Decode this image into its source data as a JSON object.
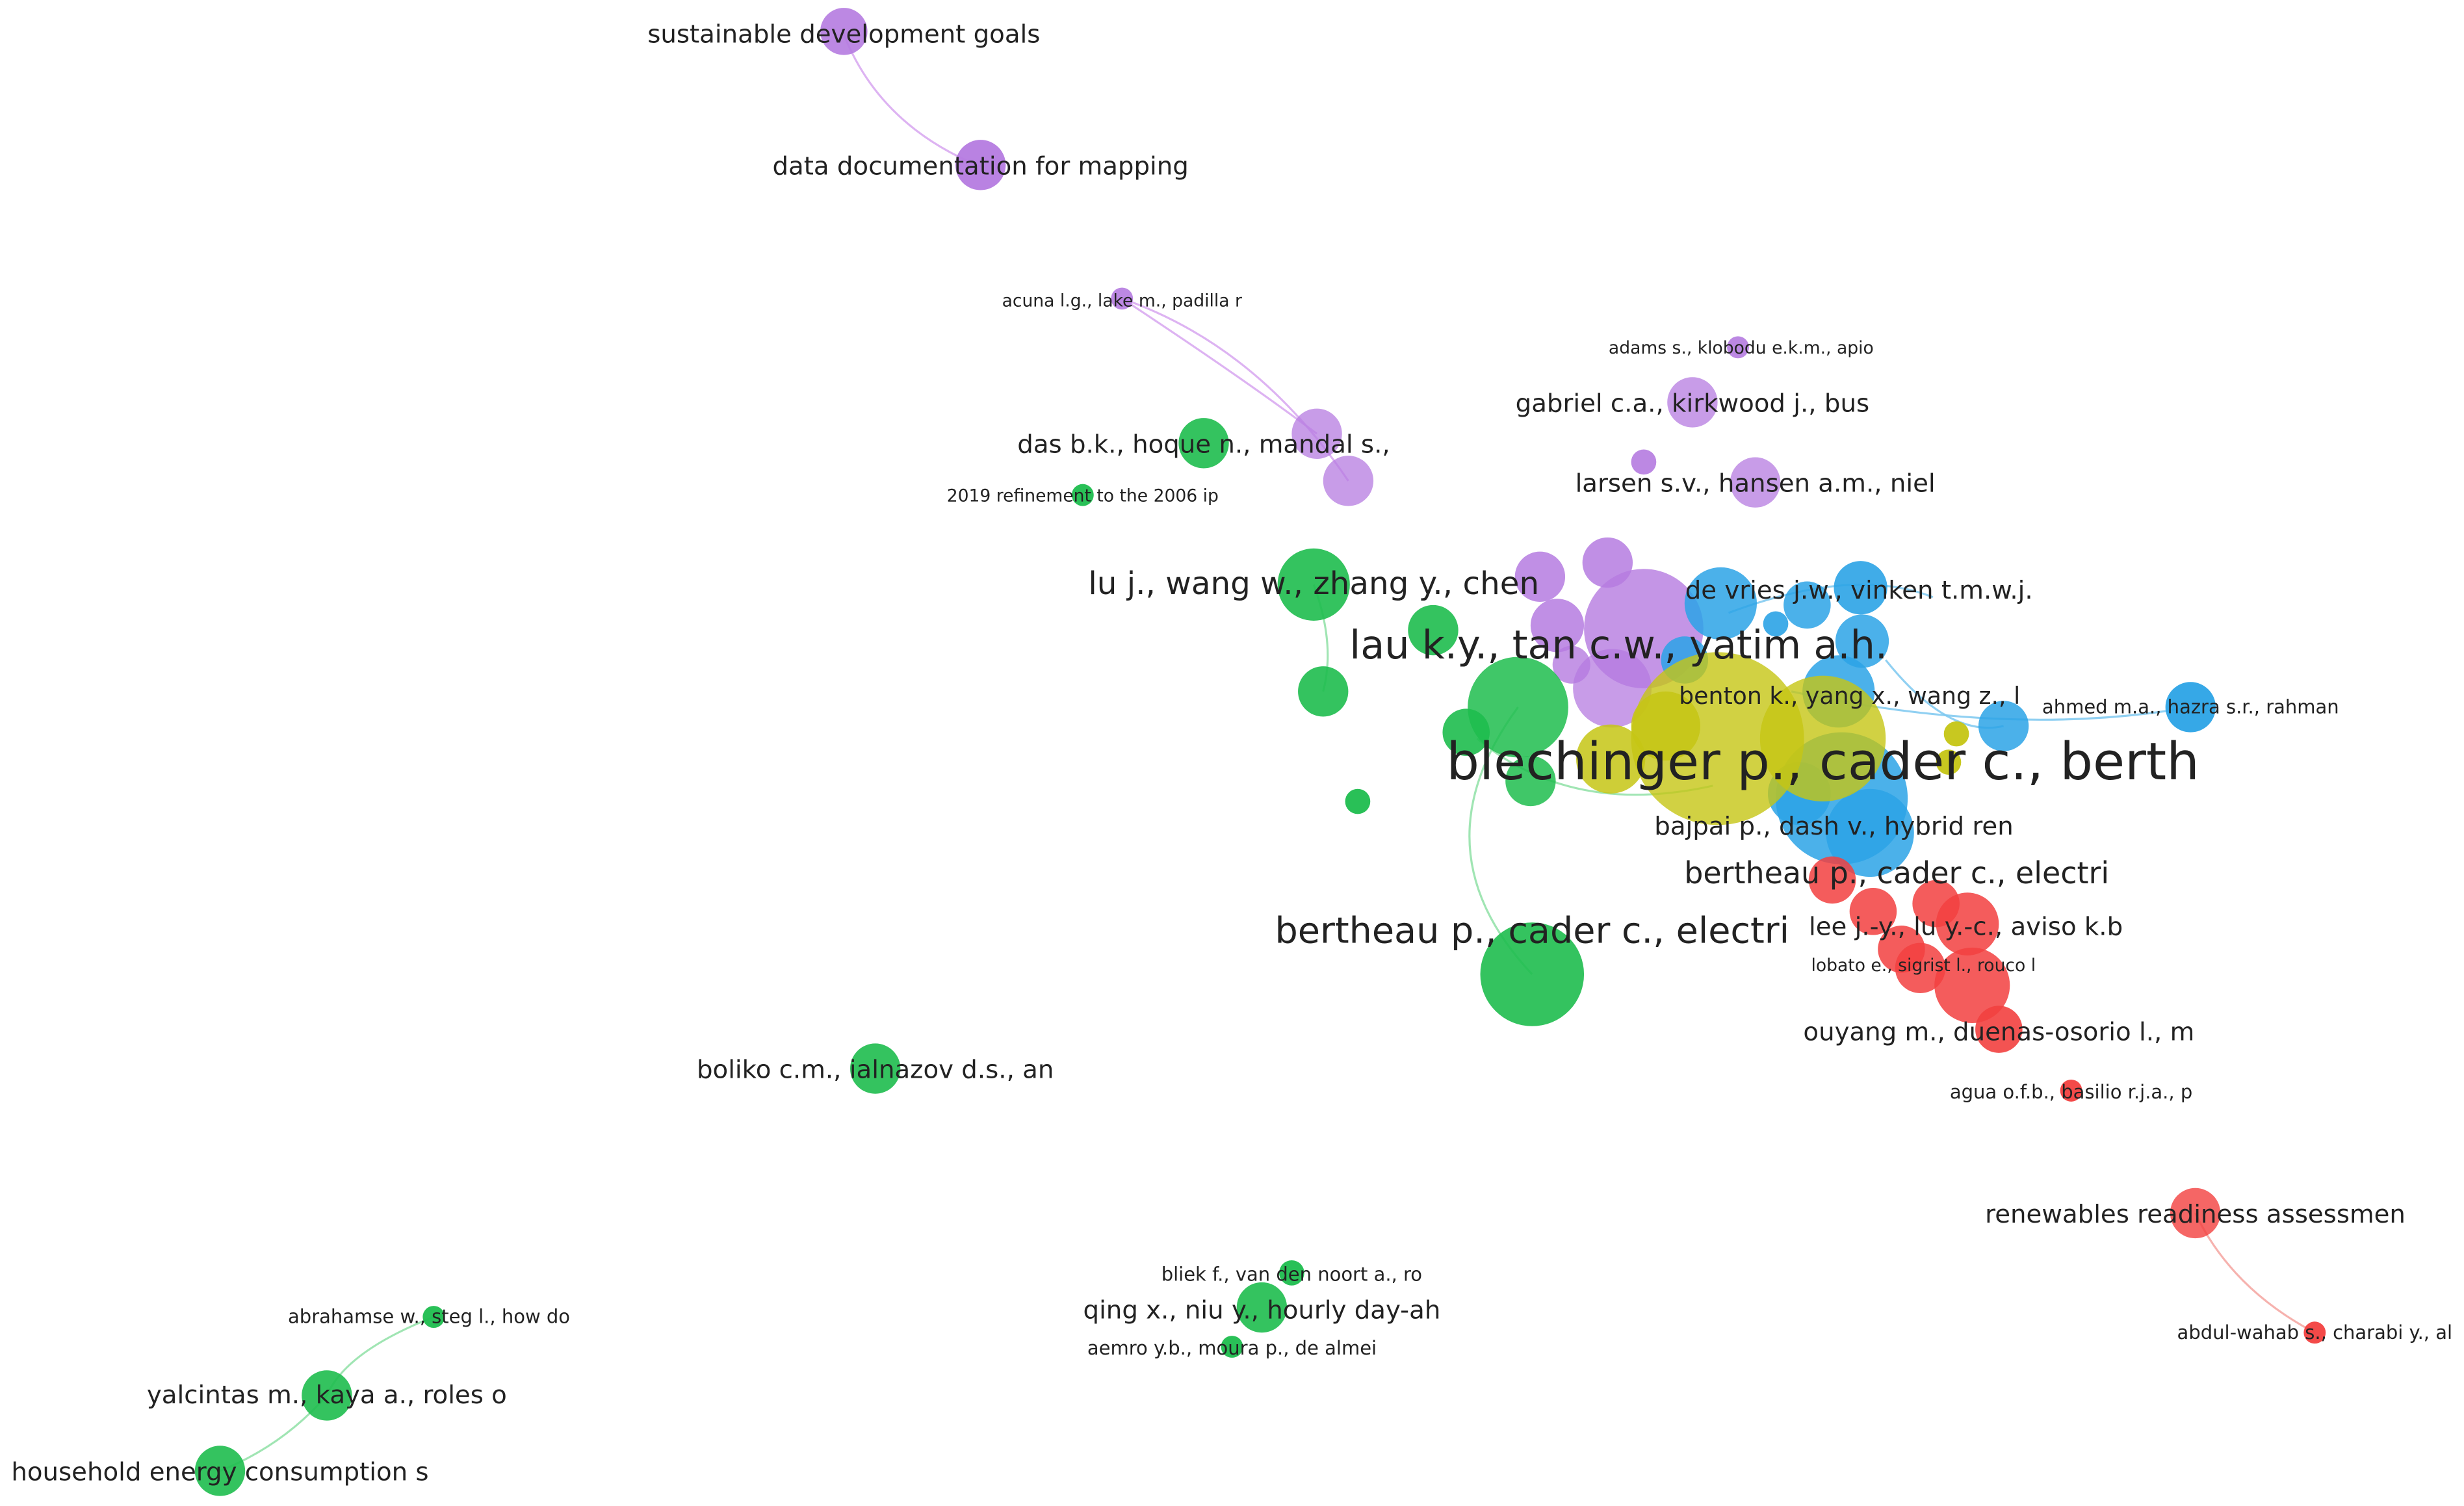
{
  "colors": {
    "purple": "#B57BE0",
    "green": "#1EBD4E",
    "blue": "#2BA3E6",
    "yellow": "#C5C514",
    "red": "#F2403F",
    "edge_purple": "#D7A6F0",
    "edge_green": "#8FE0A6",
    "edge_blue": "#7CC8F0",
    "edge_red": "#F5A5A0"
  },
  "labels": [
    {
      "id": "sdg",
      "text": "sustainable development goals"
    },
    {
      "id": "datadoc",
      "text": "data documentation for mapping"
    },
    {
      "id": "acuna",
      "text": "acuna l.g., lake m., padilla r"
    },
    {
      "id": "adams",
      "text": "adams s., klobodu e.k.m., apio"
    },
    {
      "id": "gabriel",
      "text": "gabriel c.a., kirkwood j., bus"
    },
    {
      "id": "das",
      "text": "das b.k., hoque n., mandal s.,"
    },
    {
      "id": "larsen",
      "text": "larsen s.v., hansen a.m., niel"
    },
    {
      "id": "refinement",
      "text": "2019 refinement to the 2006 ip"
    },
    {
      "id": "lu",
      "text": "lu j., wang w., zhang y., chen"
    },
    {
      "id": "devries",
      "text": "de vries j.w., vinken t.m.w.j."
    },
    {
      "id": "lau",
      "text": "lau k.y., tan c.w., yatim a.h."
    },
    {
      "id": "benton",
      "text": "benton k., yang x., wang z., l"
    },
    {
      "id": "ahmed",
      "text": "ahmed m.a., hazra s.r., rahman"
    },
    {
      "id": "blechinger",
      "text": "blechinger p., cader c., berth"
    },
    {
      "id": "bajpai",
      "text": "bajpai p., dash v., hybrid ren"
    },
    {
      "id": "bertheau_blue",
      "text": "bertheau p., cader c., electri"
    },
    {
      "id": "lee",
      "text": "lee j.-y., lu y.-c., aviso k.b"
    },
    {
      "id": "bertheau_green",
      "text": "bertheau p., cader c., electri"
    },
    {
      "id": "lobato",
      "text": "lobato e., sigrist l., rouco l"
    },
    {
      "id": "ouyang",
      "text": "ouyang m., duenas-osorio l., m"
    },
    {
      "id": "boliko",
      "text": "boliko c.m., ialnazov d.s., an"
    },
    {
      "id": "agua",
      "text": "agua o.f.b., basilio r.j.a., p"
    },
    {
      "id": "renewables",
      "text": "renewables readiness assessmen"
    },
    {
      "id": "bliek",
      "text": "bliek f., van den noort a., ro"
    },
    {
      "id": "qing",
      "text": "qing x., niu y., hourly day-ah"
    },
    {
      "id": "aemro",
      "text": "aemro y.b., moura p., de almei"
    },
    {
      "id": "abdul",
      "text": "abdul-wahab s., charabi y., al"
    },
    {
      "id": "abrahamse",
      "text": "abrahamse w., steg l., how do"
    },
    {
      "id": "yalcintas",
      "text": "yalcintas m., kaya a., roles o"
    },
    {
      "id": "household",
      "text": "household energy consumption s"
    }
  ]
}
